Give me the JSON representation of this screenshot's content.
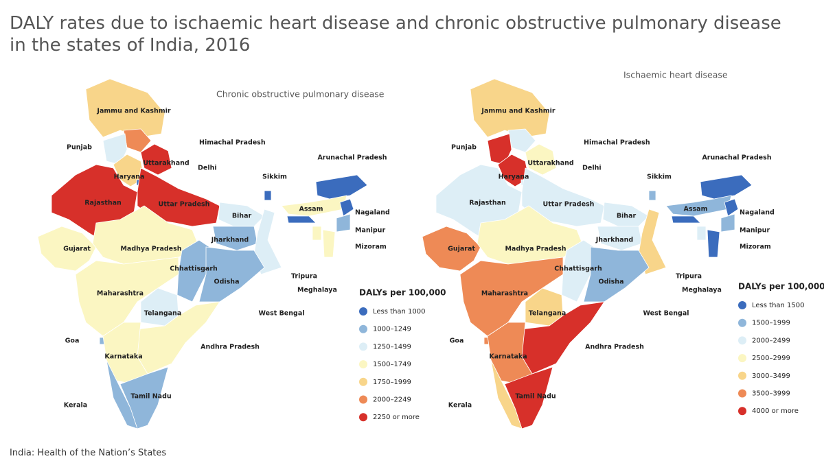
{
  "title": "DALY rates due to ischaemic heart disease and chronic obstructive pulmonary disease in the states of India, 2016",
  "source": "India: Health of the Nation’s States",
  "maps": [
    {
      "title": "Chronic obstructive pulmonary disease",
      "legend": {
        "title": "DALYs per 100,000",
        "items": [
          {
            "label": "Less than 1000",
            "color": "#3b6cbd"
          },
          {
            "label": "1000–1249",
            "color": "#8fb6da"
          },
          {
            "label": "1250–1499",
            "color": "#ddeef6"
          },
          {
            "label": "1500–1749",
            "color": "#fbf6c2"
          },
          {
            "label": "1750–1999",
            "color": "#f8d58a"
          },
          {
            "label": "2000–2249",
            "color": "#ee8a56"
          },
          {
            "label": "2250 or more",
            "color": "#d7302a"
          }
        ]
      },
      "states": [
        {
          "name": "Jammu and Kashmir",
          "color": "#f8d58a"
        },
        {
          "name": "Himachal Pradesh",
          "color": "#ee8a56"
        },
        {
          "name": "Punjab",
          "color": "#ddeef6"
        },
        {
          "name": "Uttarakhand",
          "color": "#d7302a"
        },
        {
          "name": "Haryana",
          "color": "#f8d58a"
        },
        {
          "name": "Delhi",
          "color": "#3b6cbd"
        },
        {
          "name": "Rajasthan",
          "color": "#d7302a"
        },
        {
          "name": "Uttar Pradesh",
          "color": "#d7302a"
        },
        {
          "name": "Bihar",
          "color": "#ddeef6"
        },
        {
          "name": "Sikkim",
          "color": "#3b6cbd"
        },
        {
          "name": "Arunachal Pradesh",
          "color": "#3b6cbd"
        },
        {
          "name": "Assam",
          "color": "#fbf6c2"
        },
        {
          "name": "Nagaland",
          "color": "#3b6cbd"
        },
        {
          "name": "Manipur",
          "color": "#8fb6da"
        },
        {
          "name": "Mizoram",
          "color": "#fbf6c2"
        },
        {
          "name": "Tripura",
          "color": "#fbf6c2"
        },
        {
          "name": "Meghalaya",
          "color": "#3b6cbd"
        },
        {
          "name": "Gujarat",
          "color": "#fbf6c2"
        },
        {
          "name": "Madhya Pradesh",
          "color": "#fbf6c2"
        },
        {
          "name": "Jharkhand",
          "color": "#8fb6da"
        },
        {
          "name": "West Bengal",
          "color": "#ddeef6"
        },
        {
          "name": "Chhattisgarh",
          "color": "#8fb6da"
        },
        {
          "name": "Odisha",
          "color": "#8fb6da"
        },
        {
          "name": "Maharashtra",
          "color": "#fbf6c2"
        },
        {
          "name": "Telangana",
          "color": "#ddeef6"
        },
        {
          "name": "Goa",
          "color": "#8fb6da"
        },
        {
          "name": "Andhra Pradesh",
          "color": "#fbf6c2"
        },
        {
          "name": "Karnataka",
          "color": "#fbf6c2"
        },
        {
          "name": "Tamil Nadu",
          "color": "#8fb6da"
        },
        {
          "name": "Kerala",
          "color": "#8fb6da"
        }
      ]
    },
    {
      "title": "Ischaemic heart disease",
      "legend": {
        "title": "DALYs per 100,000",
        "items": [
          {
            "label": "Less than 1500",
            "color": "#3b6cbd"
          },
          {
            "label": "1500–1999",
            "color": "#8fb6da"
          },
          {
            "label": "2000–2499",
            "color": "#ddeef6"
          },
          {
            "label": "2500–2999",
            "color": "#fbf6c2"
          },
          {
            "label": "3000–3499",
            "color": "#f8d58a"
          },
          {
            "label": "3500–3999",
            "color": "#ee8a56"
          },
          {
            "label": "4000 or more",
            "color": "#d7302a"
          }
        ]
      },
      "states": [
        {
          "name": "Jammu and Kashmir",
          "color": "#f8d58a"
        },
        {
          "name": "Himachal Pradesh",
          "color": "#ddeef6"
        },
        {
          "name": "Punjab",
          "color": "#d7302a"
        },
        {
          "name": "Uttarakhand",
          "color": "#fbf6c2"
        },
        {
          "name": "Haryana",
          "color": "#d7302a"
        },
        {
          "name": "Delhi",
          "color": "#ddeef6"
        },
        {
          "name": "Rajasthan",
          "color": "#ddeef6"
        },
        {
          "name": "Uttar Pradesh",
          "color": "#ddeef6"
        },
        {
          "name": "Bihar",
          "color": "#ddeef6"
        },
        {
          "name": "Sikkim",
          "color": "#8fb6da"
        },
        {
          "name": "Arunachal Pradesh",
          "color": "#3b6cbd"
        },
        {
          "name": "Assam",
          "color": "#8fb6da"
        },
        {
          "name": "Nagaland",
          "color": "#3b6cbd"
        },
        {
          "name": "Manipur",
          "color": "#8fb6da"
        },
        {
          "name": "Mizoram",
          "color": "#3b6cbd"
        },
        {
          "name": "Tripura",
          "color": "#ddeef6"
        },
        {
          "name": "Meghalaya",
          "color": "#3b6cbd"
        },
        {
          "name": "Gujarat",
          "color": "#ee8a56"
        },
        {
          "name": "Madhya Pradesh",
          "color": "#fbf6c2"
        },
        {
          "name": "Jharkhand",
          "color": "#ddeef6"
        },
        {
          "name": "West Bengal",
          "color": "#f8d58a"
        },
        {
          "name": "Chhattisgarh",
          "color": "#ddeef6"
        },
        {
          "name": "Odisha",
          "color": "#8fb6da"
        },
        {
          "name": "Maharashtra",
          "color": "#ee8a56"
        },
        {
          "name": "Telangana",
          "color": "#f8d58a"
        },
        {
          "name": "Goa",
          "color": "#ee8a56"
        },
        {
          "name": "Andhra Pradesh",
          "color": "#d7302a"
        },
        {
          "name": "Karnataka",
          "color": "#ee8a56"
        },
        {
          "name": "Tamil Nadu",
          "color": "#d7302a"
        },
        {
          "name": "Kerala",
          "color": "#f8d58a"
        }
      ]
    }
  ]
}
